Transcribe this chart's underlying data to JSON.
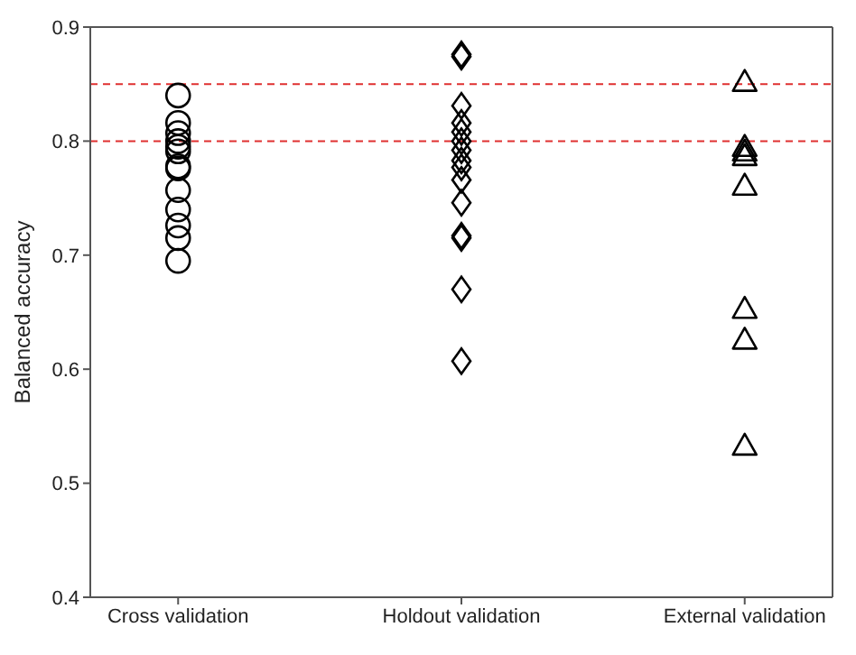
{
  "chart_data": {
    "type": "scatter",
    "ylabel": "Balanced accuracy",
    "categories": [
      "Cross validation",
      "Holdout validation",
      "External validation"
    ],
    "ylim": [
      0.4,
      0.9
    ],
    "yticks": [
      0.4,
      0.5,
      0.6,
      0.7,
      0.8,
      0.9
    ],
    "legend": false,
    "ref_lines": [
      {
        "axis": "y",
        "value": 0.85,
        "color": "#e03030",
        "line_style": "dashed"
      },
      {
        "axis": "y",
        "value": 0.8,
        "color": "#e03030",
        "line_style": "dashed"
      }
    ],
    "series": [
      {
        "color": "#000000",
        "marker": "circle",
        "x": [
          "Cross validation",
          "Cross validation",
          "Cross validation",
          "Cross validation",
          "Cross validation",
          "Cross validation",
          "Cross validation",
          "Cross validation",
          "Cross validation",
          "Cross validation",
          "Cross validation",
          "Cross validation",
          "Cross validation"
        ],
        "values": [
          0.84,
          0.816,
          0.807,
          0.8,
          0.795,
          0.791,
          0.778,
          0.776,
          0.757,
          0.74,
          0.726,
          0.715,
          0.695
        ]
      },
      {
        "color": "#000000",
        "marker": "diamond",
        "x": [
          "Holdout validation",
          "Holdout validation",
          "Holdout validation",
          "Holdout validation",
          "Holdout validation",
          "Holdout validation",
          "Holdout validation",
          "Holdout validation",
          "Holdout validation",
          "Holdout validation",
          "Holdout validation",
          "Holdout validation",
          "Holdout validation",
          "Holdout validation",
          "Holdout validation"
        ],
        "values": [
          0.876,
          0.874,
          0.831,
          0.816,
          0.808,
          0.8,
          0.792,
          0.783,
          0.777,
          0.766,
          0.746,
          0.717,
          0.715,
          0.67,
          0.607
        ]
      },
      {
        "color": "#000000",
        "marker": "triangle",
        "x": [
          "External validation",
          "External validation",
          "External validation",
          "External validation",
          "External validation",
          "External validation",
          "External validation",
          "External validation"
        ],
        "values": [
          0.852,
          0.795,
          0.791,
          0.787,
          0.761,
          0.653,
          0.626,
          0.533
        ]
      }
    ]
  }
}
